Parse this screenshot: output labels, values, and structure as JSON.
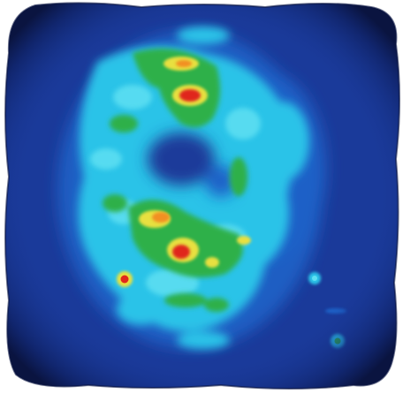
{
  "image": {
    "kind": "false-color intensity map",
    "palette": {
      "background": "#ffffff",
      "edge_dark": "#0a1440",
      "field_blue": "#1a3a9a",
      "mid_blue": "#1f62c8",
      "cyan": "#2bc3e8",
      "light_cyan": "#5fe0f2",
      "green": "#2fb04a",
      "yellow": "#e8e040",
      "orange": "#f29020",
      "red": "#e0281c"
    }
  }
}
